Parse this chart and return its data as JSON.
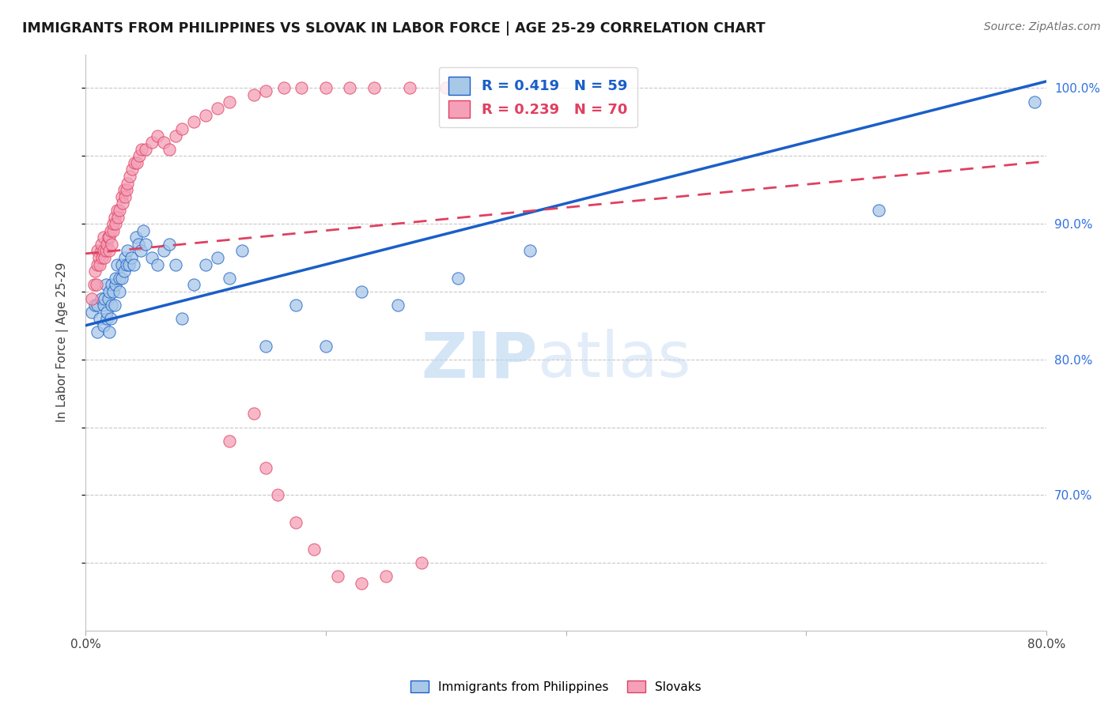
{
  "title": "IMMIGRANTS FROM PHILIPPINES VS SLOVAK IN LABOR FORCE | AGE 25-29 CORRELATION CHART",
  "source": "Source: ZipAtlas.com",
  "ylabel": "In Labor Force | Age 25-29",
  "xlim": [
    0.0,
    0.8
  ],
  "ylim": [
    0.6,
    1.025
  ],
  "blue_R": 0.419,
  "blue_N": 59,
  "pink_R": 0.239,
  "pink_N": 70,
  "blue_color": "#a8c8e8",
  "pink_color": "#f4a0b8",
  "blue_line_color": "#1a5fc8",
  "pink_line_color": "#e04060",
  "watermark_zip": "ZIP",
  "watermark_atlas": "atlas",
  "grid_color": "#c8c8c8",
  "title_color": "#1a1a1a",
  "source_color": "#707070",
  "right_yaxis_color": "#3070e0",
  "right_yticks": [
    0.7,
    0.8,
    0.9,
    1.0
  ],
  "right_yticklabels": [
    "70.0%",
    "80.0%",
    "90.0%",
    "100.0%"
  ],
  "blue_line_intercept": 0.825,
  "blue_line_slope": 0.225,
  "pink_line_intercept": 0.878,
  "pink_line_slope": 0.085,
  "blue_scatter_x": [
    0.005,
    0.008,
    0.01,
    0.01,
    0.012,
    0.013,
    0.015,
    0.015,
    0.016,
    0.017,
    0.018,
    0.018,
    0.019,
    0.02,
    0.02,
    0.021,
    0.022,
    0.022,
    0.023,
    0.024,
    0.025,
    0.025,
    0.026,
    0.028,
    0.028,
    0.03,
    0.03,
    0.032,
    0.033,
    0.034,
    0.035,
    0.036,
    0.038,
    0.04,
    0.042,
    0.044,
    0.046,
    0.048,
    0.05,
    0.055,
    0.06,
    0.065,
    0.07,
    0.075,
    0.08,
    0.09,
    0.1,
    0.11,
    0.12,
    0.13,
    0.15,
    0.175,
    0.2,
    0.23,
    0.26,
    0.31,
    0.37,
    0.66,
    0.79
  ],
  "blue_scatter_y": [
    0.835,
    0.84,
    0.82,
    0.84,
    0.83,
    0.845,
    0.825,
    0.84,
    0.845,
    0.855,
    0.83,
    0.835,
    0.845,
    0.82,
    0.85,
    0.83,
    0.84,
    0.855,
    0.85,
    0.84,
    0.855,
    0.86,
    0.87,
    0.85,
    0.86,
    0.87,
    0.86,
    0.865,
    0.875,
    0.87,
    0.88,
    0.87,
    0.875,
    0.87,
    0.89,
    0.885,
    0.88,
    0.895,
    0.885,
    0.875,
    0.87,
    0.88,
    0.885,
    0.87,
    0.83,
    0.855,
    0.87,
    0.875,
    0.86,
    0.88,
    0.81,
    0.84,
    0.81,
    0.85,
    0.84,
    0.86,
    0.88,
    0.91,
    0.99
  ],
  "pink_scatter_x": [
    0.005,
    0.007,
    0.008,
    0.009,
    0.01,
    0.01,
    0.011,
    0.012,
    0.013,
    0.013,
    0.014,
    0.015,
    0.015,
    0.016,
    0.017,
    0.018,
    0.019,
    0.02,
    0.02,
    0.021,
    0.022,
    0.023,
    0.023,
    0.024,
    0.025,
    0.026,
    0.027,
    0.028,
    0.03,
    0.031,
    0.032,
    0.033,
    0.034,
    0.035,
    0.037,
    0.039,
    0.041,
    0.043,
    0.045,
    0.047,
    0.05,
    0.055,
    0.06,
    0.065,
    0.07,
    0.075,
    0.08,
    0.09,
    0.1,
    0.11,
    0.12,
    0.14,
    0.15,
    0.165,
    0.18,
    0.2,
    0.22,
    0.24,
    0.27,
    0.3,
    0.12,
    0.14,
    0.15,
    0.16,
    0.175,
    0.19,
    0.21,
    0.23,
    0.25,
    0.28
  ],
  "pink_scatter_y": [
    0.845,
    0.855,
    0.865,
    0.855,
    0.87,
    0.88,
    0.875,
    0.87,
    0.88,
    0.885,
    0.875,
    0.88,
    0.89,
    0.875,
    0.88,
    0.885,
    0.89,
    0.88,
    0.89,
    0.895,
    0.885,
    0.895,
    0.9,
    0.905,
    0.9,
    0.91,
    0.905,
    0.91,
    0.92,
    0.915,
    0.925,
    0.92,
    0.925,
    0.93,
    0.935,
    0.94,
    0.945,
    0.945,
    0.95,
    0.955,
    0.955,
    0.96,
    0.965,
    0.96,
    0.955,
    0.965,
    0.97,
    0.975,
    0.98,
    0.985,
    0.99,
    0.995,
    0.998,
    1.0,
    1.0,
    1.0,
    1.0,
    1.0,
    1.0,
    1.0,
    0.74,
    0.76,
    0.72,
    0.7,
    0.68,
    0.66,
    0.64,
    0.635,
    0.64,
    0.65
  ]
}
